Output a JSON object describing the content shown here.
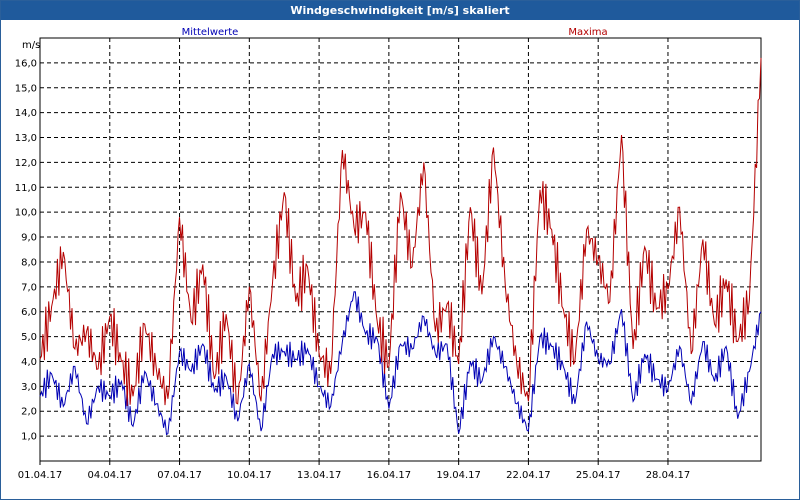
{
  "window": {
    "title": "Windgeschwindigkeit [m/s] skaliert"
  },
  "colors": {
    "titlebar": "#1f5a9c",
    "mean": "#0000b4",
    "max": "#b40000",
    "grid": "#000000"
  },
  "chart_data": {
    "type": "line",
    "title": "Windgeschwindigkeit [m/s] skaliert",
    "ylabel": "m/s",
    "xlabel": "",
    "ylim": [
      0,
      17
    ],
    "xlim": [
      0,
      31
    ],
    "grid": true,
    "yticks": [
      "1,0",
      "2,0",
      "3,0",
      "4,0",
      "5,0",
      "6,0",
      "7,0",
      "8,0",
      "9,0",
      "10,0",
      "11,0",
      "12,0",
      "13,0",
      "14,0",
      "15,0",
      "16,0"
    ],
    "xticks": [
      {
        "x": 0,
        "label": "01.04.17"
      },
      {
        "x": 3,
        "label": "04.04.17"
      },
      {
        "x": 6,
        "label": "07.04.17"
      },
      {
        "x": 9,
        "label": "10.04.17"
      },
      {
        "x": 12,
        "label": "13.04.17"
      },
      {
        "x": 15,
        "label": "16.04.17"
      },
      {
        "x": 18,
        "label": "19.04.17"
      },
      {
        "x": 21,
        "label": "22.04.17"
      },
      {
        "x": 24,
        "label": "25.04.17"
      },
      {
        "x": 27,
        "label": "28.04.17"
      }
    ],
    "series": [
      {
        "name": "Mittelwerte",
        "x": [
          0,
          0.5,
          1,
          1.5,
          2,
          2.5,
          3,
          3.5,
          4,
          4.5,
          5,
          5.5,
          6,
          6.5,
          7,
          7.5,
          8,
          8.5,
          9,
          9.5,
          10,
          10.5,
          11,
          11.5,
          12,
          12.5,
          13,
          13.5,
          14,
          14.5,
          15,
          15.5,
          16,
          16.5,
          17,
          17.5,
          18,
          18.5,
          19,
          19.5,
          20,
          20.5,
          21,
          21.5,
          22,
          22.5,
          23,
          23.5,
          24,
          24.5,
          25,
          25.5,
          26,
          26.5,
          27,
          27.5,
          28,
          28.5,
          29,
          29.5,
          30,
          30.5,
          31
        ],
        "values": [
          2.6,
          3.5,
          2.2,
          3.8,
          1.5,
          3.0,
          2.6,
          3.2,
          1.4,
          3.6,
          2.3,
          1.1,
          4.4,
          3.6,
          4.7,
          2.8,
          3.4,
          1.6,
          3.9,
          1.2,
          4.3,
          4.4,
          4.1,
          4.5,
          3.0,
          2.2,
          4.8,
          6.8,
          5.1,
          4.9,
          2.1,
          4.7,
          4.5,
          5.8,
          4.3,
          4.7,
          1.1,
          4.0,
          3.2,
          5.0,
          3.8,
          2.3,
          1.2,
          5.0,
          4.6,
          3.8,
          2.3,
          5.6,
          4.1,
          3.9,
          6.1,
          2.4,
          4.3,
          3.3,
          2.9,
          4.6,
          2.3,
          4.8,
          3.2,
          4.6,
          1.7,
          3.6,
          6.0
        ]
      },
      {
        "name": "Maxima",
        "x": [
          0,
          0.5,
          1,
          1.5,
          2,
          2.5,
          3,
          3.5,
          4,
          4.5,
          5,
          5.5,
          6,
          6.5,
          7,
          7.5,
          8,
          8.5,
          9,
          9.5,
          10,
          10.5,
          11,
          11.5,
          12,
          12.5,
          13,
          13.5,
          14,
          14.5,
          15,
          15.5,
          16,
          16.5,
          17,
          17.5,
          18,
          18.5,
          19,
          19.5,
          20,
          20.5,
          21,
          21.5,
          22,
          22.5,
          23,
          23.5,
          24,
          24.5,
          25,
          25.5,
          26,
          26.5,
          27,
          27.5,
          28,
          28.5,
          29,
          29.5,
          30,
          30.5,
          31
        ],
        "values": [
          4.1,
          6.2,
          8.4,
          4.5,
          5.2,
          3.7,
          5.8,
          4.0,
          2.6,
          5.5,
          3.7,
          2.5,
          9.8,
          5.6,
          7.9,
          3.3,
          5.9,
          2.3,
          7.0,
          2.4,
          7.2,
          10.8,
          6.4,
          7.8,
          4.3,
          3.5,
          12.5,
          9.4,
          10.0,
          5.6,
          3.8,
          10.8,
          7.8,
          12.0,
          5.2,
          6.3,
          3.9,
          10.2,
          6.7,
          12.6,
          7.1,
          3.9,
          2.4,
          10.9,
          9.3,
          6.1,
          4.0,
          9.3,
          8.1,
          6.4,
          13.1,
          4.5,
          8.6,
          6.1,
          6.9,
          10.2,
          4.3,
          8.9,
          5.5,
          7.3,
          4.8,
          6.5,
          16.2
        ]
      }
    ]
  }
}
